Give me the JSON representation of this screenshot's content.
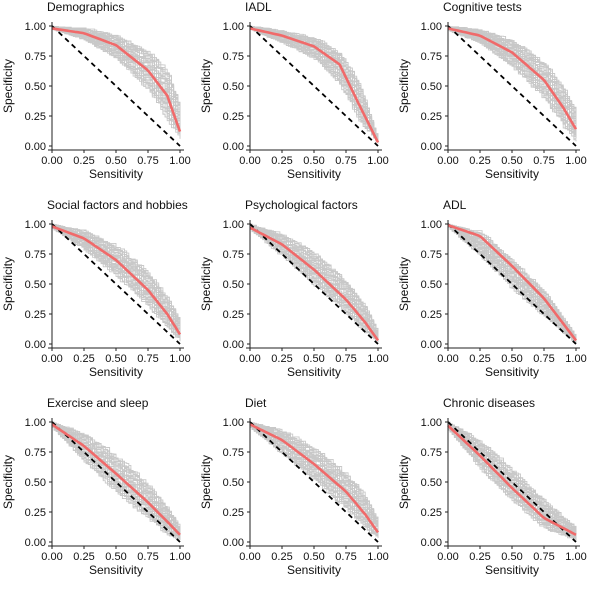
{
  "colors": {
    "sample_curve": "#c8c8c8",
    "mean_curve": "#f06a6a",
    "reference": "#000000",
    "axis": "#222222",
    "text": "#111111"
  },
  "chart_data": [
    {
      "type": "line",
      "title": "Demographics",
      "xlabel": "Sensitivity",
      "ylabel": "Specificity",
      "xlim": [
        0,
        1
      ],
      "ylim": [
        0,
        1
      ],
      "xticks": [
        "0.00",
        "0.25",
        "0.50",
        "0.75",
        "1.00"
      ],
      "yticks": [
        "0.00",
        "0.25",
        "0.50",
        "0.75",
        "1.00"
      ],
      "grid": false,
      "legend": "none",
      "series": [
        {
          "x": [
            0,
            0.25,
            0.5,
            0.75,
            0.9,
            1
          ],
          "y": [
            0.98,
            0.94,
            0.84,
            0.63,
            0.42,
            0.12
          ]
        },
        {
          "x": [
            0,
            1
          ],
          "y": [
            1,
            0
          ]
        }
      ],
      "sample_band": {
        "x": [
          0,
          0.25,
          0.5,
          0.75,
          0.9,
          1
        ],
        "y_low": [
          0.97,
          0.88,
          0.72,
          0.45,
          0.2,
          0.05
        ],
        "y_high": [
          1,
          0.99,
          0.94,
          0.82,
          0.65,
          0.35
        ]
      }
    },
    {
      "type": "line",
      "title": "IADL",
      "xlabel": "Sensitivity",
      "ylabel": "Specificity",
      "xlim": [
        0,
        1
      ],
      "ylim": [
        0,
        1
      ],
      "xticks": [
        "0.00",
        "0.25",
        "0.50",
        "0.75",
        "1.00"
      ],
      "yticks": [
        "0.00",
        "0.25",
        "0.50",
        "0.75",
        "1.00"
      ],
      "grid": false,
      "legend": "none",
      "series": [
        {
          "x": [
            0,
            0.25,
            0.5,
            0.7,
            0.85,
            1
          ],
          "y": [
            0.98,
            0.92,
            0.83,
            0.68,
            0.35,
            0.03
          ]
        },
        {
          "x": [
            0,
            1
          ],
          "y": [
            1,
            0
          ]
        }
      ],
      "sample_band": {
        "x": [
          0,
          0.25,
          0.5,
          0.7,
          0.85,
          1
        ],
        "y_low": [
          0.97,
          0.85,
          0.72,
          0.5,
          0.2,
          0.02
        ],
        "y_high": [
          1,
          0.97,
          0.92,
          0.8,
          0.55,
          0.05
        ]
      }
    },
    {
      "type": "line",
      "title": "Cognitive tests",
      "xlabel": "Sensitivity",
      "ylabel": "Specificity",
      "xlim": [
        0,
        1
      ],
      "ylim": [
        0,
        1
      ],
      "xticks": [
        "0.00",
        "0.25",
        "0.50",
        "0.75",
        "1.00"
      ],
      "yticks": [
        "0.00",
        "0.25",
        "0.50",
        "0.75",
        "1.00"
      ],
      "grid": false,
      "legend": "none",
      "series": [
        {
          "x": [
            0,
            0.25,
            0.5,
            0.75,
            0.9,
            1
          ],
          "y": [
            0.98,
            0.92,
            0.78,
            0.55,
            0.32,
            0.14
          ]
        },
        {
          "x": [
            0,
            1
          ],
          "y": [
            1,
            0
          ]
        }
      ],
      "sample_band": {
        "x": [
          0,
          0.25,
          0.5,
          0.75,
          0.9,
          1
        ],
        "y_low": [
          0.96,
          0.85,
          0.65,
          0.38,
          0.15,
          0.03
        ],
        "y_high": [
          1,
          0.98,
          0.9,
          0.72,
          0.5,
          0.3
        ]
      }
    },
    {
      "type": "line",
      "title": "Social factors and hobbies",
      "xlabel": "Sensitivity",
      "ylabel": "Specificity",
      "xlim": [
        0,
        1
      ],
      "ylim": [
        0,
        1
      ],
      "xticks": [
        "0.00",
        "0.25",
        "0.50",
        "0.75",
        "1.00"
      ],
      "yticks": [
        "0.00",
        "0.25",
        "0.50",
        "0.75",
        "1.00"
      ],
      "grid": false,
      "legend": "none",
      "series": [
        {
          "x": [
            0,
            0.25,
            0.5,
            0.75,
            0.9,
            1
          ],
          "y": [
            0.98,
            0.88,
            0.7,
            0.45,
            0.25,
            0.08
          ]
        },
        {
          "x": [
            0,
            1
          ],
          "y": [
            1,
            0
          ]
        }
      ],
      "sample_band": {
        "x": [
          0,
          0.25,
          0.5,
          0.75,
          0.9,
          1
        ],
        "y_low": [
          0.96,
          0.78,
          0.55,
          0.3,
          0.12,
          0.02
        ],
        "y_high": [
          1,
          0.96,
          0.84,
          0.62,
          0.4,
          0.2
        ]
      }
    },
    {
      "type": "line",
      "title": "Psychological factors",
      "xlabel": "Sensitivity",
      "ylabel": "Specificity",
      "xlim": [
        0,
        1
      ],
      "ylim": [
        0,
        1
      ],
      "xticks": [
        "0.00",
        "0.25",
        "0.50",
        "0.75",
        "1.00"
      ],
      "yticks": [
        "0.00",
        "0.25",
        "0.50",
        "0.75",
        "1.00"
      ],
      "grid": false,
      "legend": "none",
      "series": [
        {
          "x": [
            0,
            0.25,
            0.5,
            0.75,
            0.9,
            1
          ],
          "y": [
            0.97,
            0.83,
            0.62,
            0.37,
            0.18,
            0.03
          ]
        },
        {
          "x": [
            0,
            1
          ],
          "y": [
            1,
            0
          ]
        }
      ],
      "sample_band": {
        "x": [
          0,
          0.25,
          0.5,
          0.75,
          0.9,
          1
        ],
        "y_low": [
          0.95,
          0.72,
          0.48,
          0.24,
          0.08,
          0.01
        ],
        "y_high": [
          1,
          0.93,
          0.78,
          0.55,
          0.32,
          0.1
        ]
      }
    },
    {
      "type": "line",
      "title": "ADL",
      "xlabel": "Sensitivity",
      "ylabel": "Specificity",
      "xlim": [
        0,
        1
      ],
      "ylim": [
        0,
        1
      ],
      "xticks": [
        "0.00",
        "0.25",
        "0.50",
        "0.75",
        "1.00"
      ],
      "yticks": [
        "0.00",
        "0.25",
        "0.50",
        "0.75",
        "1.00"
      ],
      "grid": false,
      "legend": "none",
      "series": [
        {
          "x": [
            0,
            0.25,
            0.5,
            0.75,
            1
          ],
          "y": [
            0.99,
            0.9,
            0.65,
            0.38,
            0.03
          ]
        },
        {
          "x": [
            0,
            1
          ],
          "y": [
            1,
            0
          ]
        }
      ],
      "sample_band": {
        "x": [
          0,
          0.25,
          0.5,
          0.75,
          1
        ],
        "y_low": [
          0.97,
          0.72,
          0.45,
          0.22,
          0.0
        ],
        "y_high": [
          1,
          0.95,
          0.72,
          0.45,
          0.06
        ]
      }
    },
    {
      "type": "line",
      "title": "Exercise and sleep",
      "xlabel": "Sensitivity",
      "ylabel": "Specificity",
      "xlim": [
        0,
        1
      ],
      "ylim": [
        0,
        1
      ],
      "xticks": [
        "0.00",
        "0.25",
        "0.50",
        "0.75",
        "1.00"
      ],
      "yticks": [
        "0.00",
        "0.25",
        "0.50",
        "0.75",
        "1.00"
      ],
      "grid": false,
      "legend": "none",
      "series": [
        {
          "x": [
            0,
            0.25,
            0.5,
            0.75,
            0.9,
            1
          ],
          "y": [
            0.98,
            0.8,
            0.57,
            0.33,
            0.17,
            0.06
          ]
        },
        {
          "x": [
            0,
            1
          ],
          "y": [
            1,
            0
          ]
        }
      ],
      "sample_band": {
        "x": [
          0,
          0.25,
          0.5,
          0.75,
          0.9,
          1
        ],
        "y_low": [
          0.95,
          0.66,
          0.4,
          0.18,
          0.05,
          0.01
        ],
        "y_high": [
          1,
          0.92,
          0.74,
          0.5,
          0.3,
          0.12
        ]
      }
    },
    {
      "type": "line",
      "title": "Diet",
      "xlabel": "Sensitivity",
      "ylabel": "Specificity",
      "xlim": [
        0,
        1
      ],
      "ylim": [
        0,
        1
      ],
      "xticks": [
        "0.00",
        "0.25",
        "0.50",
        "0.75",
        "1.00"
      ],
      "yticks": [
        "0.00",
        "0.25",
        "0.50",
        "0.75",
        "1.00"
      ],
      "grid": false,
      "legend": "none",
      "series": [
        {
          "x": [
            0,
            0.25,
            0.5,
            0.75,
            0.9,
            1
          ],
          "y": [
            0.98,
            0.85,
            0.65,
            0.42,
            0.23,
            0.08
          ]
        },
        {
          "x": [
            0,
            1
          ],
          "y": [
            1,
            0
          ]
        }
      ],
      "sample_band": {
        "x": [
          0,
          0.25,
          0.5,
          0.75,
          0.9,
          1
        ],
        "y_low": [
          0.95,
          0.72,
          0.5,
          0.26,
          0.1,
          0.02
        ],
        "y_high": [
          1,
          0.95,
          0.8,
          0.6,
          0.4,
          0.18
        ]
      }
    },
    {
      "type": "line",
      "title": "Chronic diseases",
      "xlabel": "Sensitivity",
      "ylabel": "Specificity",
      "xlim": [
        0,
        1
      ],
      "ylim": [
        0,
        1
      ],
      "xticks": [
        "0.00",
        "0.25",
        "0.50",
        "0.75",
        "1.00"
      ],
      "yticks": [
        "0.00",
        "0.25",
        "0.50",
        "0.75",
        "1.00"
      ],
      "grid": false,
      "legend": "none",
      "series": [
        {
          "x": [
            0,
            0.25,
            0.5,
            0.75,
            1
          ],
          "y": [
            0.97,
            0.72,
            0.45,
            0.2,
            0.06
          ]
        },
        {
          "x": [
            0,
            1
          ],
          "y": [
            1,
            0
          ]
        }
      ],
      "sample_band": {
        "x": [
          0,
          0.25,
          0.5,
          0.75,
          1
        ],
        "y_low": [
          0.93,
          0.6,
          0.33,
          0.1,
          0.01
        ],
        "y_high": [
          1,
          0.86,
          0.62,
          0.36,
          0.12
        ]
      }
    }
  ]
}
